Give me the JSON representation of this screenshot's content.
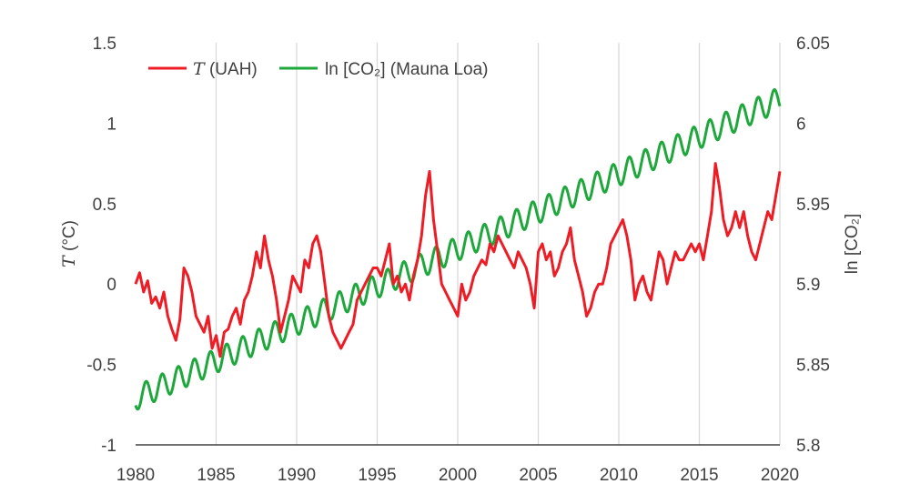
{
  "chart_data": {
    "type": "line",
    "ylabel_left_var": "T",
    "ylabel_left_unit": " (°C)",
    "ylabel_right": "ln [CO₂]",
    "xlim": [
      1980,
      2020
    ],
    "ylim_left": [
      -1,
      1.5
    ],
    "ylim_right": [
      5.8,
      6.05
    ],
    "grid": "vertical",
    "legend_position": "top-left",
    "x_ticks": [
      "1980",
      "1985",
      "1990",
      "1995",
      "2000",
      "2005",
      "2010",
      "2015",
      "2020"
    ],
    "y_left_ticks": [
      "1.5",
      "1",
      "0.5",
      "0",
      "-0.5",
      "-1"
    ],
    "y_right_ticks": [
      "6.05",
      "6",
      "5.95",
      "5.9",
      "5.85",
      "5.8"
    ],
    "legend": {
      "uah_var": "T",
      "uah_rest": " (UAH)",
      "co2": "ln [CO₂] (Mauna Loa)"
    },
    "colors": {
      "uah": "#ee1c25",
      "co2": "#1ea83c"
    },
    "series": [
      {
        "name": "T (UAH)",
        "axis": "left",
        "x": [
          1980.0,
          1980.25,
          1980.5,
          1980.75,
          1981.0,
          1981.25,
          1981.5,
          1981.75,
          1982.0,
          1982.25,
          1982.5,
          1982.75,
          1983.0,
          1983.25,
          1983.5,
          1983.75,
          1984.0,
          1984.25,
          1984.5,
          1984.75,
          1985.0,
          1985.25,
          1985.5,
          1985.75,
          1986.0,
          1986.25,
          1986.5,
          1986.75,
          1987.0,
          1987.25,
          1987.5,
          1987.75,
          1988.0,
          1988.25,
          1988.5,
          1988.75,
          1989.0,
          1989.25,
          1989.5,
          1989.75,
          1990.0,
          1990.25,
          1990.5,
          1990.75,
          1991.0,
          1991.25,
          1991.5,
          1991.75,
          1992.0,
          1992.25,
          1992.5,
          1992.75,
          1993.0,
          1993.25,
          1993.5,
          1993.75,
          1994.0,
          1994.25,
          1994.5,
          1994.75,
          1995.0,
          1995.25,
          1995.5,
          1995.75,
          1996.0,
          1996.25,
          1996.5,
          1996.75,
          1997.0,
          1997.25,
          1997.5,
          1997.75,
          1998.0,
          1998.25,
          1998.5,
          1998.75,
          1999.0,
          1999.25,
          1999.5,
          1999.75,
          2000.0,
          2000.25,
          2000.5,
          2000.75,
          2001.0,
          2001.25,
          2001.5,
          2001.75,
          2002.0,
          2002.25,
          2002.5,
          2002.75,
          2003.0,
          2003.25,
          2003.5,
          2003.75,
          2004.0,
          2004.25,
          2004.5,
          2004.75,
          2005.0,
          2005.25,
          2005.5,
          2005.75,
          2006.0,
          2006.25,
          2006.5,
          2006.75,
          2007.0,
          2007.25,
          2007.5,
          2007.75,
          2008.0,
          2008.25,
          2008.5,
          2008.75,
          2009.0,
          2009.25,
          2009.5,
          2009.75,
          2010.0,
          2010.25,
          2010.5,
          2010.75,
          2011.0,
          2011.25,
          2011.5,
          2011.75,
          2012.0,
          2012.25,
          2012.5,
          2012.75,
          2013.0,
          2013.25,
          2013.5,
          2013.75,
          2014.0,
          2014.25,
          2014.5,
          2014.75,
          2015.0,
          2015.25,
          2015.5,
          2015.75,
          2016.0,
          2016.25,
          2016.5,
          2016.75,
          2017.0,
          2017.25,
          2017.5,
          2017.75,
          2018.0,
          2018.25,
          2018.5,
          2018.75,
          2019.0,
          2019.25,
          2019.5,
          2019.75,
          2020.0
        ],
        "y": [
          0.0,
          0.07,
          -0.05,
          0.02,
          -0.12,
          -0.08,
          -0.15,
          -0.05,
          -0.2,
          -0.28,
          -0.35,
          -0.22,
          0.1,
          0.05,
          -0.05,
          -0.2,
          -0.25,
          -0.3,
          -0.2,
          -0.4,
          -0.32,
          -0.45,
          -0.3,
          -0.28,
          -0.2,
          -0.15,
          -0.25,
          -0.1,
          -0.05,
          0.05,
          0.2,
          0.1,
          0.3,
          0.15,
          0.05,
          -0.1,
          -0.3,
          -0.2,
          -0.1,
          0.05,
          0.0,
          -0.05,
          0.15,
          0.1,
          0.25,
          0.3,
          0.2,
          0.0,
          -0.2,
          -0.3,
          -0.35,
          -0.4,
          -0.35,
          -0.3,
          -0.25,
          -0.1,
          -0.05,
          0.0,
          0.05,
          0.1,
          0.1,
          0.05,
          0.15,
          0.25,
          0.0,
          0.05,
          -0.05,
          0.0,
          -0.1,
          0.05,
          0.15,
          0.3,
          0.55,
          0.7,
          0.4,
          0.2,
          0.0,
          -0.05,
          -0.1,
          -0.15,
          -0.2,
          0.0,
          -0.1,
          -0.05,
          0.05,
          0.1,
          0.15,
          0.12,
          0.25,
          0.2,
          0.3,
          0.25,
          0.2,
          0.15,
          0.1,
          0.2,
          0.15,
          0.1,
          0.0,
          -0.15,
          0.2,
          0.25,
          0.15,
          0.2,
          0.05,
          0.1,
          0.2,
          0.25,
          0.35,
          0.15,
          0.05,
          -0.05,
          -0.2,
          -0.15,
          -0.05,
          0.0,
          0.0,
          0.1,
          0.25,
          0.3,
          0.35,
          0.4,
          0.3,
          0.15,
          -0.1,
          0.0,
          0.05,
          -0.05,
          -0.1,
          0.05,
          0.2,
          0.15,
          0.0,
          0.1,
          0.2,
          0.15,
          0.15,
          0.2,
          0.25,
          0.2,
          0.25,
          0.15,
          0.3,
          0.45,
          0.75,
          0.6,
          0.4,
          0.3,
          0.35,
          0.45,
          0.35,
          0.45,
          0.3,
          0.2,
          0.15,
          0.25,
          0.35,
          0.45,
          0.4,
          0.55,
          0.7
        ]
      },
      {
        "name": "ln [CO₂] (Mauna Loa)",
        "axis": "right",
        "trend_start": [
          1980,
          5.829
        ],
        "trend_end": [
          2020,
          6.015
        ],
        "seasonal_amplitude": 0.0075
      }
    ]
  }
}
